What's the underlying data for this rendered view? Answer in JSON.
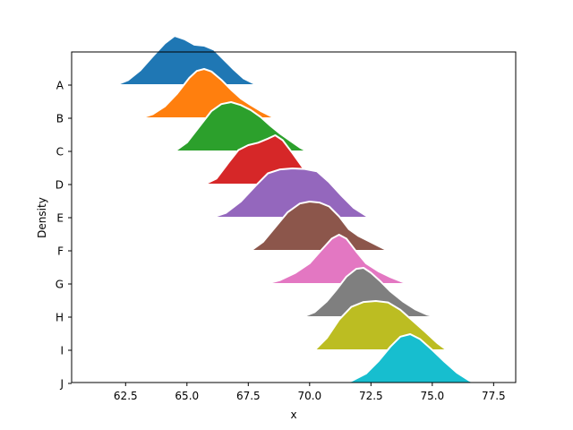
{
  "chart_data": {
    "type": "area",
    "title": "",
    "xlabel": "x",
    "ylabel": "Density",
    "xlim": [
      60.3,
      78.4
    ],
    "xticks": [
      62.5,
      65.0,
      67.5,
      70.0,
      72.5,
      75.0,
      77.5
    ],
    "xtick_labels": [
      "62.5",
      "65.0",
      "67.5",
      "70.0",
      "72.5",
      "75.0",
      "77.5"
    ],
    "categories": [
      "A",
      "B",
      "C",
      "D",
      "E",
      "F",
      "G",
      "H",
      "I",
      "J"
    ],
    "grid": false,
    "legend": "none",
    "series": [
      {
        "name": "A",
        "color": "#1f77b4",
        "x": [
          62.1,
          62.6,
          63.1,
          63.6,
          64.1,
          64.5,
          64.9,
          65.3,
          65.7,
          66.1,
          66.5,
          66.9,
          67.3,
          67.7,
          67.9
        ],
        "density": [
          0.0,
          0.1,
          0.3,
          0.58,
          0.85,
          1.0,
          0.93,
          0.82,
          0.8,
          0.72,
          0.52,
          0.32,
          0.14,
          0.04,
          0.0
        ]
      },
      {
        "name": "B",
        "color": "#ff7f0e",
        "x": [
          63.1,
          63.6,
          64.1,
          64.6,
          65.1,
          65.4,
          65.7,
          66.0,
          66.4,
          66.8,
          67.2,
          67.6,
          68.0,
          68.4,
          68.6
        ],
        "density": [
          0.0,
          0.08,
          0.24,
          0.5,
          0.82,
          0.96,
          1.0,
          0.95,
          0.78,
          0.58,
          0.4,
          0.27,
          0.15,
          0.05,
          0.0
        ]
      },
      {
        "name": "C",
        "color": "#2ca02c",
        "x": [
          64.5,
          65.0,
          65.5,
          66.0,
          66.4,
          66.8,
          67.2,
          67.6,
          68.0,
          68.4,
          68.8,
          69.2,
          69.6,
          69.9
        ],
        "density": [
          0.0,
          0.18,
          0.5,
          0.82,
          0.96,
          1.0,
          0.94,
          0.84,
          0.7,
          0.52,
          0.36,
          0.22,
          0.08,
          0.0
        ]
      },
      {
        "name": "D",
        "color": "#d62728",
        "x": [
          65.7,
          66.2,
          66.7,
          67.1,
          67.5,
          67.9,
          68.3,
          68.6,
          68.9,
          69.3,
          69.7,
          70.1,
          70.5,
          70.7
        ],
        "density": [
          0.0,
          0.12,
          0.45,
          0.7,
          0.8,
          0.85,
          0.93,
          1.0,
          0.9,
          0.64,
          0.36,
          0.16,
          0.04,
          0.0
        ]
      },
      {
        "name": "E",
        "color": "#9467bd",
        "x": [
          66.0,
          66.6,
          67.2,
          67.8,
          68.3,
          68.8,
          69.3,
          69.8,
          70.3,
          70.8,
          71.3,
          71.8,
          72.3,
          72.5
        ],
        "density": [
          0.0,
          0.1,
          0.33,
          0.65,
          0.9,
          0.98,
          1.0,
          0.99,
          0.94,
          0.72,
          0.45,
          0.2,
          0.04,
          0.0
        ]
      },
      {
        "name": "F",
        "color": "#8c564b",
        "x": [
          67.6,
          68.1,
          68.6,
          69.1,
          69.6,
          70.0,
          70.4,
          70.8,
          71.2,
          71.6,
          72.0,
          72.4,
          72.8,
          73.2
        ],
        "density": [
          0.0,
          0.18,
          0.48,
          0.78,
          0.96,
          1.0,
          0.98,
          0.9,
          0.7,
          0.44,
          0.3,
          0.2,
          0.1,
          0.0
        ]
      },
      {
        "name": "G",
        "color": "#e377c2",
        "x": [
          68.2,
          68.8,
          69.4,
          70.0,
          70.5,
          70.9,
          71.2,
          71.5,
          71.9,
          72.3,
          72.8,
          73.3,
          73.8,
          74.1
        ],
        "density": [
          0.0,
          0.08,
          0.22,
          0.42,
          0.7,
          0.92,
          1.0,
          0.92,
          0.66,
          0.42,
          0.26,
          0.14,
          0.04,
          0.0
        ]
      },
      {
        "name": "H",
        "color": "#7f7f7f",
        "x": [
          69.7,
          70.2,
          70.7,
          71.1,
          71.5,
          71.9,
          72.2,
          72.5,
          72.9,
          73.3,
          73.8,
          74.3,
          74.8,
          75.2
        ],
        "density": [
          0.0,
          0.1,
          0.32,
          0.56,
          0.82,
          0.98,
          1.0,
          0.9,
          0.72,
          0.52,
          0.32,
          0.16,
          0.05,
          0.0
        ]
      },
      {
        "name": "I",
        "color": "#bcbd22",
        "x": [
          70.2,
          70.7,
          71.2,
          71.7,
          72.2,
          72.7,
          73.2,
          73.7,
          74.2,
          74.7,
          75.2,
          75.6
        ],
        "density": [
          0.0,
          0.25,
          0.62,
          0.88,
          0.98,
          1.0,
          0.97,
          0.82,
          0.6,
          0.38,
          0.15,
          0.0
        ]
      },
      {
        "name": "J",
        "color": "#17becf",
        "x": [
          71.1,
          71.7,
          72.3,
          72.8,
          73.3,
          73.7,
          74.1,
          74.5,
          75.0,
          75.5,
          76.0,
          76.5,
          76.8
        ],
        "density": [
          0.0,
          0.05,
          0.2,
          0.45,
          0.75,
          0.95,
          1.0,
          0.9,
          0.68,
          0.44,
          0.22,
          0.06,
          0.0
        ]
      }
    ]
  }
}
